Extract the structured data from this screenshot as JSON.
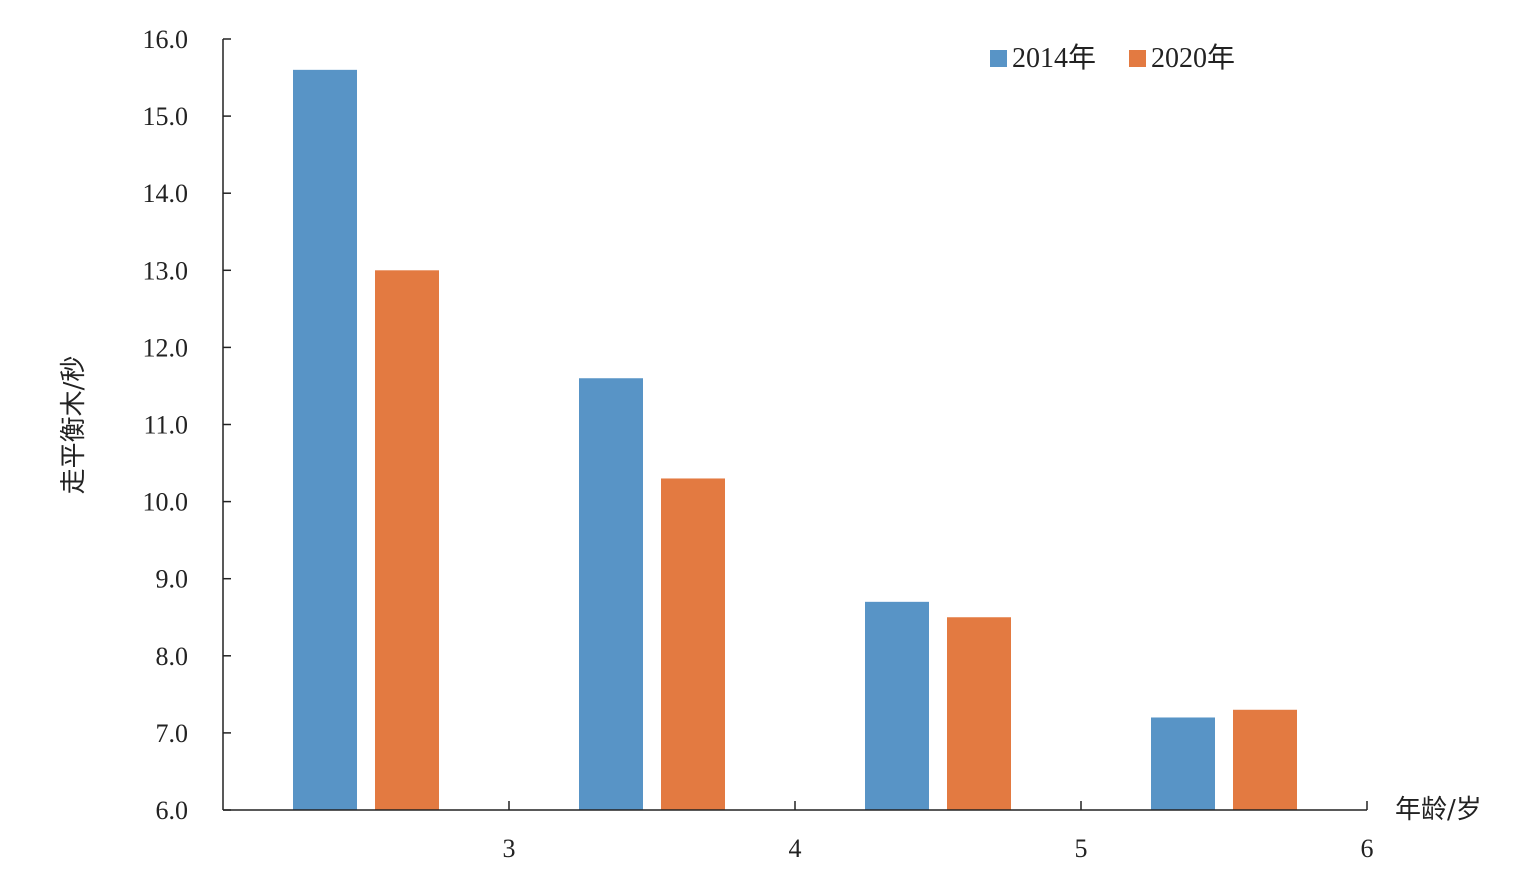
{
  "chart_data": {
    "type": "bar",
    "title": "",
    "xlabel": "年龄/岁",
    "ylabel": "走平衡木/秒",
    "ylim": [
      6.0,
      16.0
    ],
    "y_ticks": [
      "6.0",
      "7.0",
      "8.0",
      "9.0",
      "10.0",
      "11.0",
      "12.0",
      "13.0",
      "14.0",
      "15.0",
      "16.0"
    ],
    "x_ticks": [
      "3",
      "4",
      "5",
      "6"
    ],
    "categories": [
      "2.5",
      "3.5",
      "4.5",
      "5.5"
    ],
    "series": [
      {
        "name": "2014年",
        "color": "#5894c6",
        "values": [
          15.6,
          11.6,
          8.7,
          7.2
        ]
      },
      {
        "name": "2020年",
        "color": "#e37a41",
        "values": [
          13.0,
          10.3,
          8.5,
          7.3
        ]
      }
    ],
    "legend_position": "top-right",
    "grid": false
  }
}
